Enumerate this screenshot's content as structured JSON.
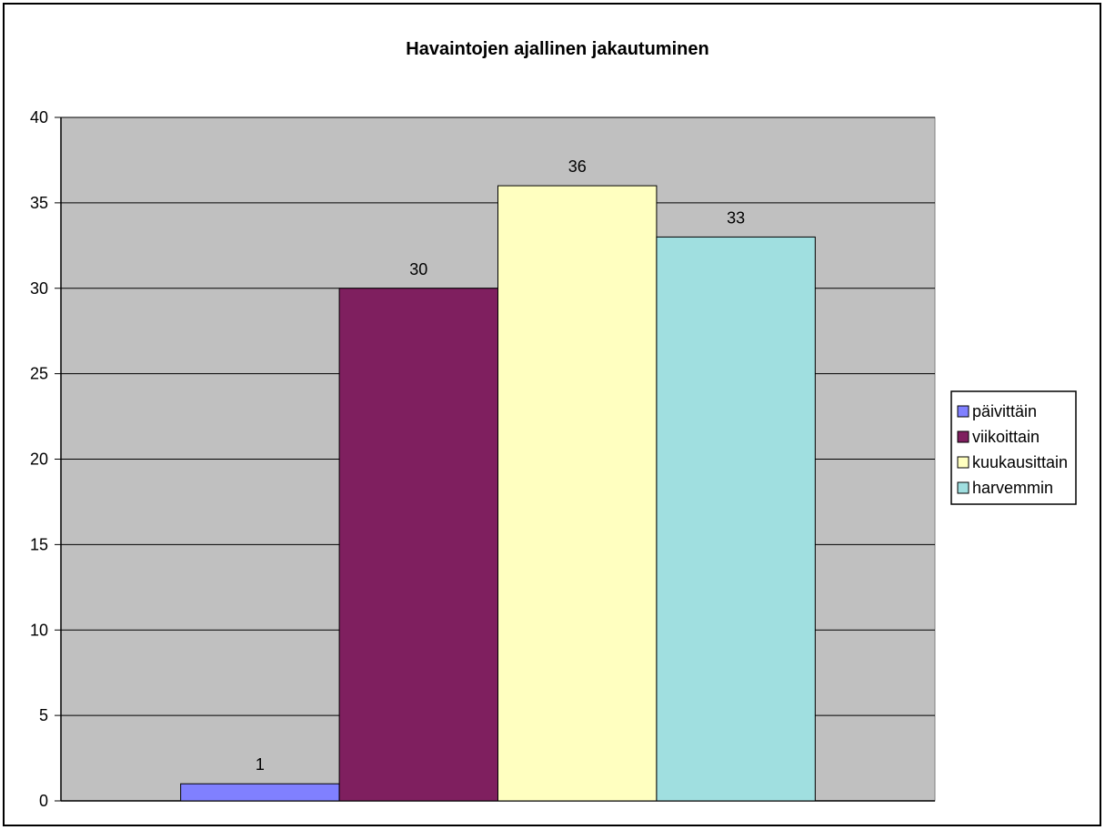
{
  "chart_data": {
    "type": "bar",
    "title": "Havaintojen ajallinen jakautuminen",
    "xlabel": "",
    "ylabel": "",
    "ylim": [
      0,
      40
    ],
    "yticks": [
      0,
      5,
      10,
      15,
      20,
      25,
      30,
      35,
      40
    ],
    "grid": true,
    "legend_position": "right",
    "plot_background": "#C0C0C0",
    "series": [
      {
        "name": "päivittäin",
        "value": 1,
        "color": "#8080FF"
      },
      {
        "name": "viikoittain",
        "value": 30,
        "color": "#7F1F5F"
      },
      {
        "name": "kuukausittain",
        "value": 36,
        "color": "#FFFFC0"
      },
      {
        "name": "harvemmin",
        "value": 33,
        "color": "#A0DFE0"
      }
    ]
  }
}
